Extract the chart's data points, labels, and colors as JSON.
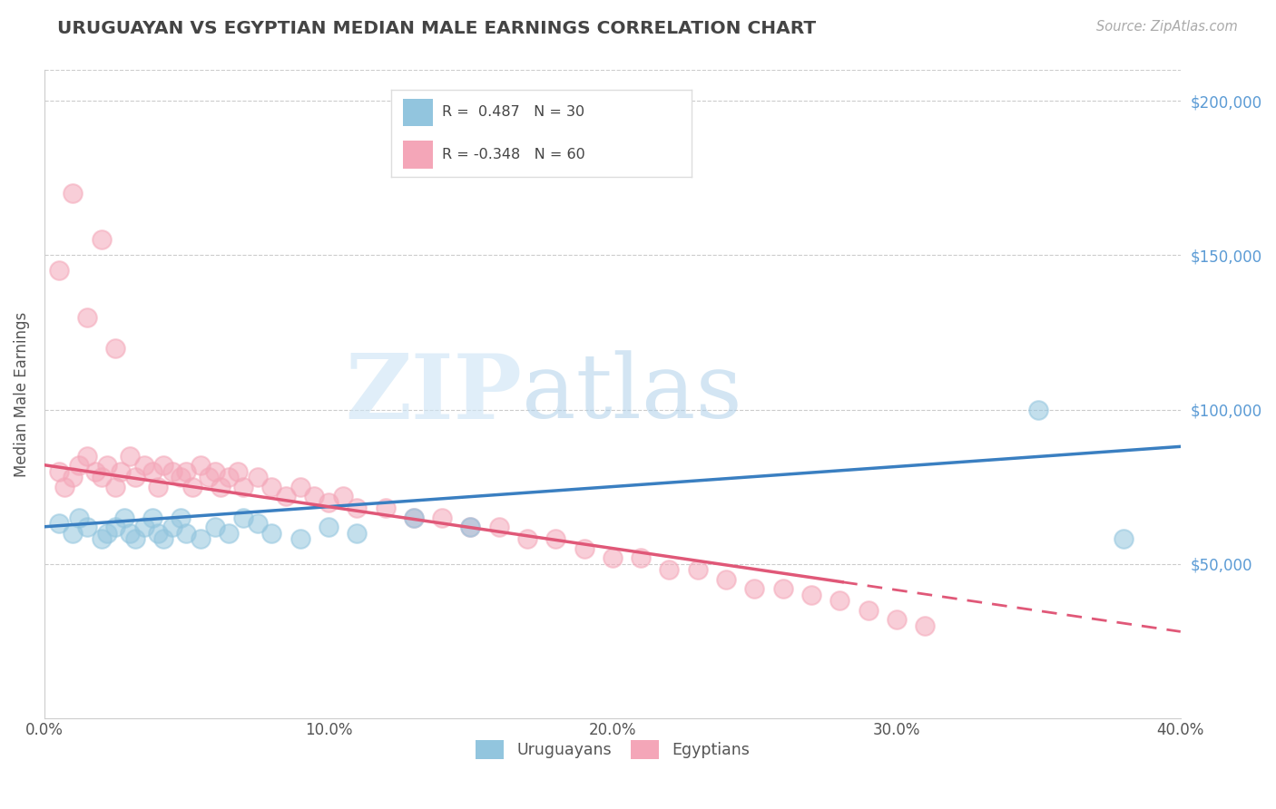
{
  "title": "URUGUAYAN VS EGYPTIAN MEDIAN MALE EARNINGS CORRELATION CHART",
  "source_text": "Source: ZipAtlas.com",
  "ylabel": "Median Male Earnings",
  "xlim": [
    0.0,
    0.4
  ],
  "ylim": [
    0,
    210000
  ],
  "xtick_labels": [
    "0.0%",
    "10.0%",
    "20.0%",
    "30.0%",
    "40.0%"
  ],
  "xtick_vals": [
    0.0,
    0.1,
    0.2,
    0.3,
    0.4
  ],
  "ytick_vals": [
    0,
    50000,
    100000,
    150000,
    200000
  ],
  "ytick_labels": [
    "",
    "$50,000",
    "$100,000",
    "$150,000",
    "$200,000"
  ],
  "legend_R1": " 0.487",
  "legend_N1": "30",
  "legend_R2": "-0.348",
  "legend_N2": "60",
  "uruguayan_color": "#92c5de",
  "egyptian_color": "#f4a6b8",
  "uruguayan_line_color": "#3a7fc1",
  "egyptian_line_color": "#e05878",
  "uruguayan_x": [
    0.005,
    0.01,
    0.012,
    0.015,
    0.02,
    0.022,
    0.025,
    0.028,
    0.03,
    0.032,
    0.035,
    0.038,
    0.04,
    0.042,
    0.045,
    0.048,
    0.05,
    0.055,
    0.06,
    0.065,
    0.07,
    0.075,
    0.08,
    0.09,
    0.1,
    0.11,
    0.13,
    0.15,
    0.35,
    0.38
  ],
  "uruguayan_y": [
    63000,
    60000,
    65000,
    62000,
    58000,
    60000,
    62000,
    65000,
    60000,
    58000,
    62000,
    65000,
    60000,
    58000,
    62000,
    65000,
    60000,
    58000,
    62000,
    60000,
    65000,
    63000,
    60000,
    58000,
    62000,
    60000,
    65000,
    62000,
    100000,
    58000
  ],
  "egyptian_x": [
    0.005,
    0.007,
    0.01,
    0.012,
    0.015,
    0.018,
    0.02,
    0.022,
    0.025,
    0.027,
    0.03,
    0.032,
    0.035,
    0.038,
    0.04,
    0.042,
    0.045,
    0.048,
    0.05,
    0.052,
    0.055,
    0.058,
    0.06,
    0.062,
    0.065,
    0.068,
    0.07,
    0.075,
    0.08,
    0.085,
    0.09,
    0.095,
    0.1,
    0.105,
    0.11,
    0.12,
    0.13,
    0.14,
    0.15,
    0.16,
    0.17,
    0.18,
    0.19,
    0.2,
    0.21,
    0.22,
    0.23,
    0.24,
    0.25,
    0.26,
    0.27,
    0.28,
    0.29,
    0.3,
    0.31,
    0.025,
    0.02,
    0.015,
    0.01,
    0.005
  ],
  "egyptian_y": [
    80000,
    75000,
    78000,
    82000,
    85000,
    80000,
    78000,
    82000,
    75000,
    80000,
    85000,
    78000,
    82000,
    80000,
    75000,
    82000,
    80000,
    78000,
    80000,
    75000,
    82000,
    78000,
    80000,
    75000,
    78000,
    80000,
    75000,
    78000,
    75000,
    72000,
    75000,
    72000,
    70000,
    72000,
    68000,
    68000,
    65000,
    65000,
    62000,
    62000,
    58000,
    58000,
    55000,
    52000,
    52000,
    48000,
    48000,
    45000,
    42000,
    42000,
    40000,
    38000,
    35000,
    32000,
    30000,
    120000,
    155000,
    130000,
    170000,
    145000
  ],
  "watermark_zip": "ZIP",
  "watermark_atlas": "atlas",
  "background_color": "#ffffff"
}
